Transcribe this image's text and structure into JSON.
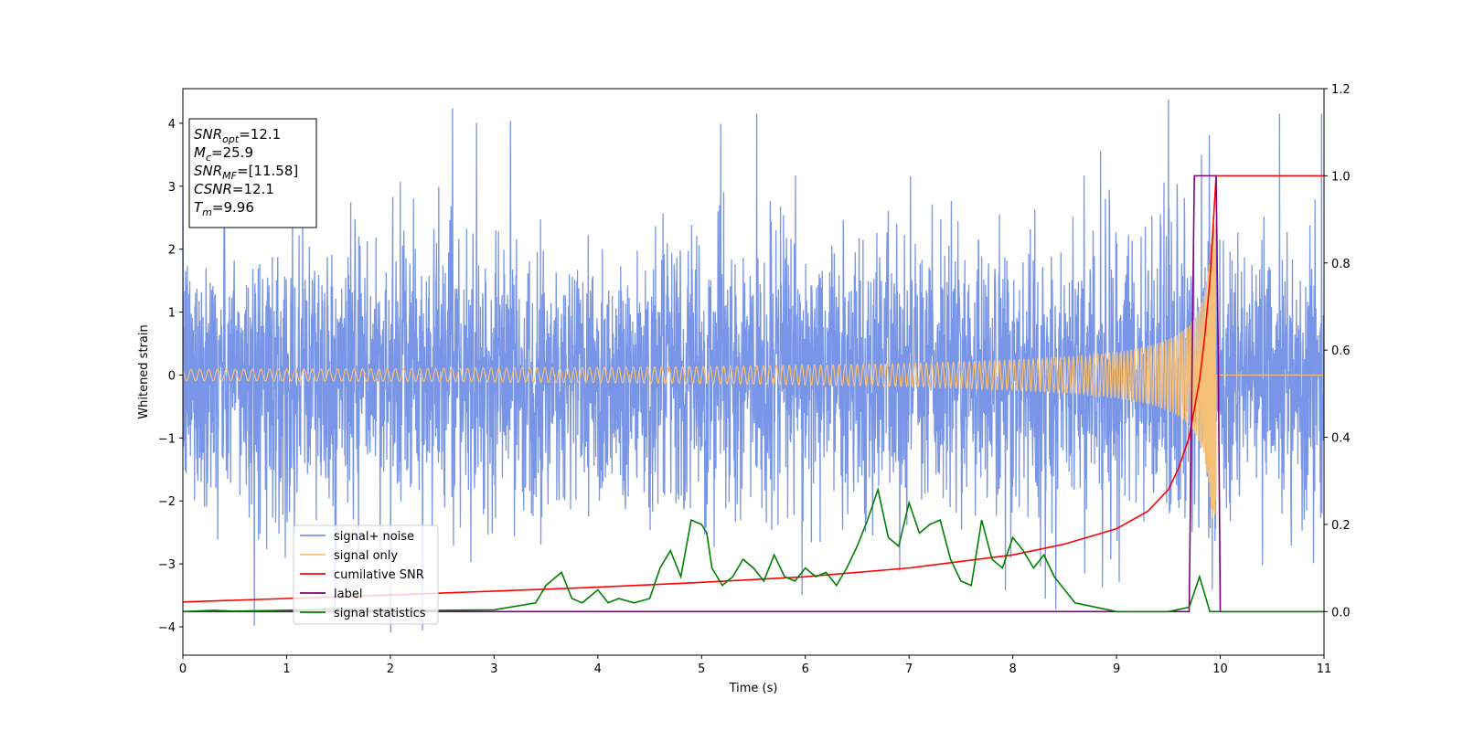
{
  "chart_data": {
    "type": "line",
    "xlabel": "Time (s)",
    "ylabel": "Whitened strain",
    "xlim": [
      0,
      11
    ],
    "ylim": [
      -4.45,
      4.55
    ],
    "y2lim": [
      -0.1,
      1.2
    ],
    "x_ticks": [
      "0",
      "1",
      "2",
      "3",
      "4",
      "5",
      "6",
      "7",
      "8",
      "9",
      "10",
      "11"
    ],
    "y_ticks": [
      "4",
      "3",
      "2",
      "1",
      "0",
      "−1",
      "−2",
      "−3",
      "−4"
    ],
    "y2_ticks": [
      "1.2",
      "1.0",
      "0.8",
      "0.6",
      "0.4",
      "0.2",
      "0.0"
    ],
    "grid": false,
    "legend_position": "lower-left",
    "series": [
      {
        "name": "signal+ noise",
        "axis": "left",
        "color": "#7895e8",
        "description": "whitened noise of amplitude ~1.3 with spikes up to ~4.2"
      },
      {
        "name": "signal only",
        "axis": "left",
        "color": "#f5c077",
        "chirp": {
          "t_start": 0.0,
          "t_merge": 9.96,
          "amplitude_end": 2.4
        }
      },
      {
        "name": "cumilative SNR",
        "axis": "right",
        "color": "#ff0000",
        "x": [
          0,
          1,
          2,
          3,
          4,
          5,
          6,
          7,
          8,
          8.5,
          9,
          9.3,
          9.5,
          9.6,
          9.7,
          9.8,
          9.85,
          9.9,
          9.96,
          10,
          11
        ],
        "values": [
          0.022,
          0.03,
          0.038,
          0.047,
          0.056,
          0.067,
          0.08,
          0.1,
          0.13,
          0.155,
          0.19,
          0.23,
          0.28,
          0.33,
          0.4,
          0.53,
          0.63,
          0.76,
          1.0,
          1.0,
          1.0
        ]
      },
      {
        "name": "label",
        "axis": "right",
        "color": "#800080",
        "x": [
          0,
          9.7,
          9.75,
          9.96,
          9.98,
          9.99,
          10.0,
          11
        ],
        "values": [
          0,
          0,
          1,
          1,
          0.6,
          0.3,
          0,
          0
        ]
      },
      {
        "name": "signal statistics",
        "axis": "right",
        "color": "#008000",
        "x": [
          0,
          0.3,
          0.5,
          1,
          1.5,
          2,
          2.5,
          3,
          3.4,
          3.5,
          3.65,
          3.75,
          3.85,
          4.0,
          4.1,
          4.2,
          4.35,
          4.5,
          4.6,
          4.7,
          4.8,
          4.9,
          5.0,
          5.05,
          5.1,
          5.2,
          5.3,
          5.4,
          5.5,
          5.6,
          5.7,
          5.8,
          5.9,
          6.0,
          6.1,
          6.2,
          6.3,
          6.4,
          6.5,
          6.6,
          6.7,
          6.8,
          6.9,
          7.0,
          7.1,
          7.2,
          7.3,
          7.4,
          7.5,
          7.6,
          7.7,
          7.8,
          7.9,
          8.0,
          8.1,
          8.2,
          8.3,
          8.4,
          8.5,
          8.6,
          8.8,
          9.0,
          9.5,
          9.7,
          9.8,
          9.9,
          10.0,
          11
        ],
        "values": [
          0,
          0.003,
          0.001,
          0.003,
          0.006,
          0.002,
          0.003,
          0.004,
          0.02,
          0.06,
          0.09,
          0.03,
          0.02,
          0.05,
          0.02,
          0.03,
          0.02,
          0.03,
          0.1,
          0.14,
          0.08,
          0.21,
          0.2,
          0.18,
          0.1,
          0.06,
          0.08,
          0.12,
          0.1,
          0.07,
          0.13,
          0.08,
          0.07,
          0.1,
          0.08,
          0.09,
          0.06,
          0.1,
          0.15,
          0.21,
          0.28,
          0.17,
          0.15,
          0.25,
          0.18,
          0.2,
          0.21,
          0.12,
          0.07,
          0.06,
          0.21,
          0.12,
          0.1,
          0.17,
          0.14,
          0.1,
          0.13,
          0.08,
          0.05,
          0.02,
          0.01,
          0.0,
          0.0,
          0.01,
          0.08,
          0.0,
          0.0,
          0.0
        ]
      }
    ],
    "info_box": [
      {
        "base": "SNR",
        "sub": "opt",
        "rest": "=12.1"
      },
      {
        "base": "M",
        "sub": "c",
        "rest": "=25.9"
      },
      {
        "base": "SNR",
        "sub": "MF",
        "rest": "=[11.58]"
      },
      {
        "base": "CSNR",
        "sub": "",
        "rest": "=12.1"
      },
      {
        "base": "T",
        "sub": "m",
        "rest": "=9.96"
      }
    ]
  }
}
